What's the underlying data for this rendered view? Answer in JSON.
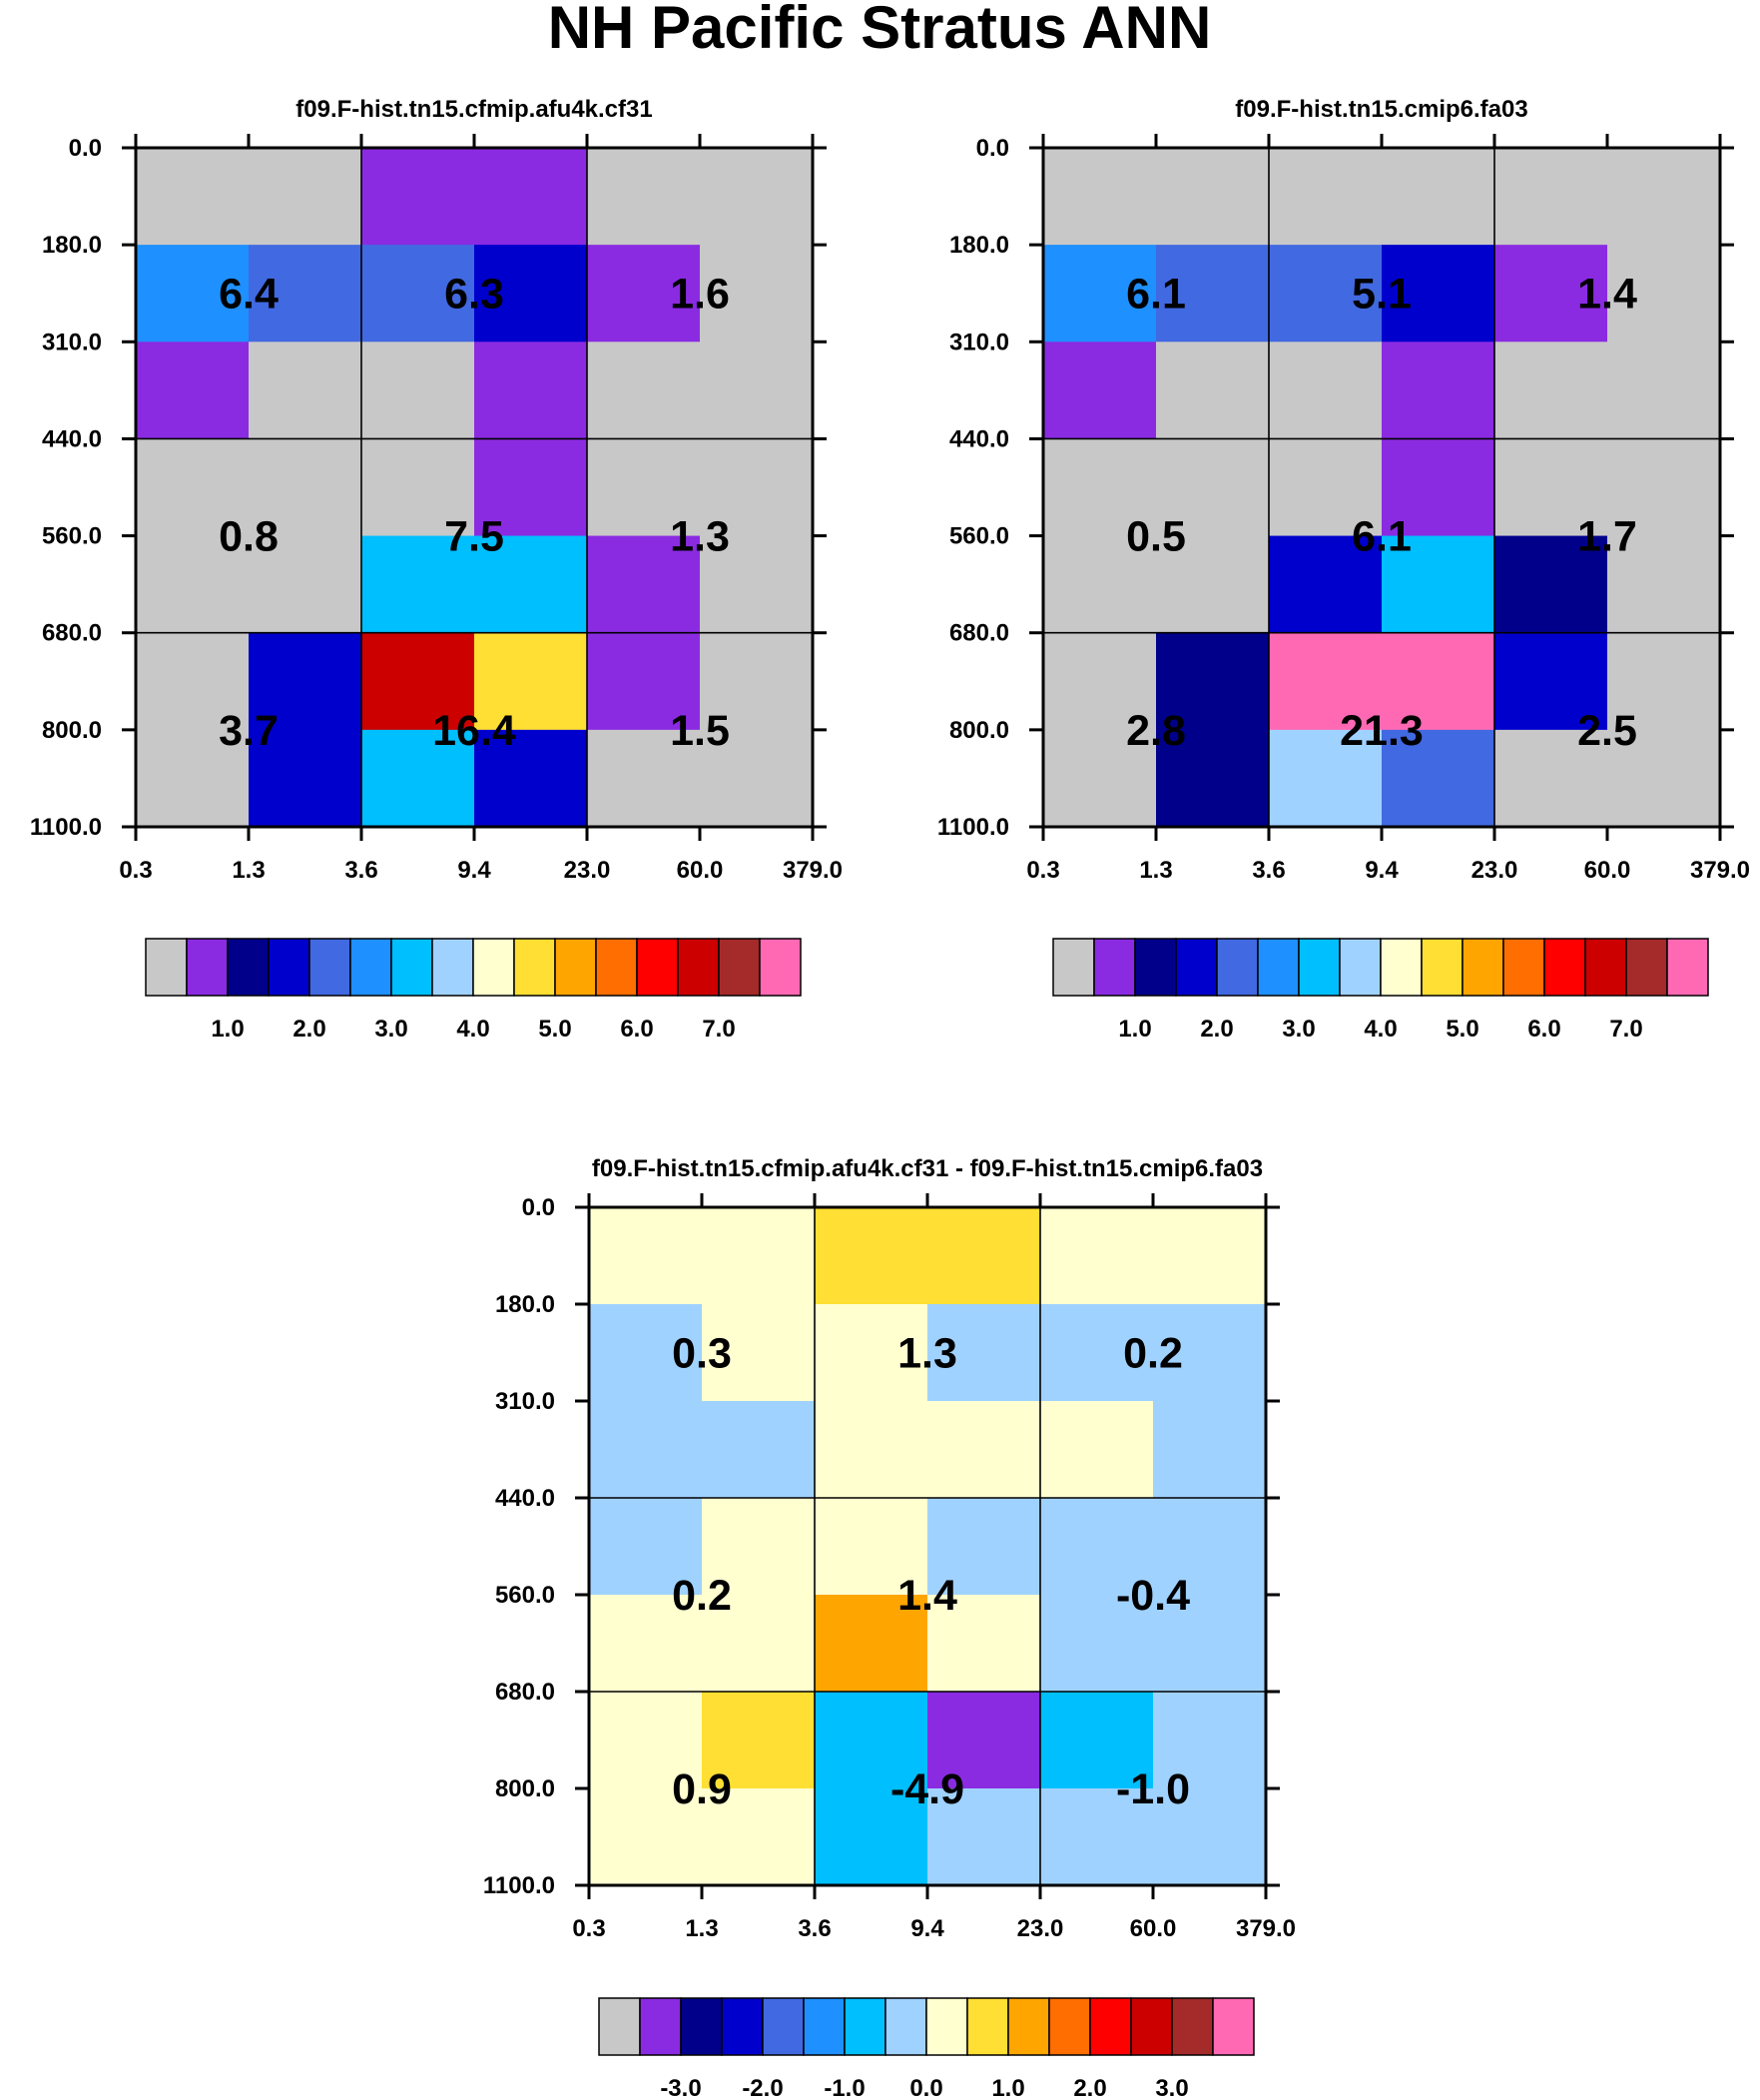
{
  "figure_title": "NH Pacific Stratus ANN",
  "x_tick_labels": [
    "0.3",
    "1.3",
    "3.6",
    "9.4",
    "23.0",
    "60.0",
    "379.0"
  ],
  "y_tick_labels": [
    "0.0",
    "180.0",
    "310.0",
    "440.0",
    "560.0",
    "680.0",
    "800.0",
    "1100.0"
  ],
  "colorbar_colors": [
    "#c8c8c8",
    "#8a2be2",
    "#00008b",
    "#0000cd",
    "#4169e1",
    "#1e90ff",
    "#00bfff",
    "#a0d2ff",
    "#ffffd0",
    "#ffdf33",
    "#ffa500",
    "#ff6e00",
    "#ff0000",
    "#cd0000",
    "#a52a2a",
    "#ff69b4"
  ],
  "chart_data": [
    {
      "type": "heatmap",
      "title": "f09.F-hist.tn15.cfmip.afu4k.cf31",
      "xlabel": "",
      "ylabel": "",
      "x_bin_edges": [
        "0.3",
        "1.3",
        "3.6",
        "9.4",
        "23.0",
        "60.0",
        "379.0"
      ],
      "y_bin_edges": [
        "0.0",
        "180.0",
        "310.0",
        "440.0",
        "560.0",
        "680.0",
        "800.0",
        "1100.0"
      ],
      "cells": [
        [
          "gray",
          "gray",
          "violet",
          "violet",
          "gray",
          "gray"
        ],
        [
          "dodgerblue",
          "royalblue",
          "royalblue",
          "mediumblue",
          "violet",
          "gray"
        ],
        [
          "violet",
          "gray",
          "gray",
          "violet",
          "gray",
          "gray"
        ],
        [
          "gray",
          "gray",
          "gray",
          "violet",
          "gray",
          "gray"
        ],
        [
          "gray",
          "gray",
          "deepskyblue",
          "deepskyblue",
          "violet",
          "gray"
        ],
        [
          "gray",
          "mediumblue",
          "red3",
          "gold",
          "violet",
          "gray"
        ],
        [
          "gray",
          "mediumblue",
          "deepskyblue",
          "mediumblue",
          "gray",
          "gray"
        ]
      ],
      "block_values": [
        [
          "6.4",
          "6.3",
          "1.6"
        ],
        [
          "0.8",
          "7.5",
          "1.3"
        ],
        [
          "3.7",
          "16.4",
          "1.5"
        ]
      ],
      "colorbar_tick_labels": [
        "1.0",
        "2.0",
        "3.0",
        "4.0",
        "5.0",
        "6.0",
        "7.0"
      ]
    },
    {
      "type": "heatmap",
      "title": "f09.F-hist.tn15.cmip6.fa03",
      "xlabel": "",
      "ylabel": "",
      "x_bin_edges": [
        "0.3",
        "1.3",
        "3.6",
        "9.4",
        "23.0",
        "60.0",
        "379.0"
      ],
      "y_bin_edges": [
        "0.0",
        "180.0",
        "310.0",
        "440.0",
        "560.0",
        "680.0",
        "800.0",
        "1100.0"
      ],
      "cells": [
        [
          "gray",
          "gray",
          "gray",
          "gray",
          "gray",
          "gray"
        ],
        [
          "dodgerblue",
          "royalblue",
          "royalblue",
          "mediumblue",
          "violet",
          "gray"
        ],
        [
          "violet",
          "gray",
          "gray",
          "violet",
          "gray",
          "gray"
        ],
        [
          "gray",
          "gray",
          "gray",
          "violet",
          "gray",
          "gray"
        ],
        [
          "gray",
          "gray",
          "mediumblue",
          "deepskyblue",
          "navy",
          "gray"
        ],
        [
          "gray",
          "navy",
          "hotpink",
          "hotpink",
          "mediumblue",
          "gray"
        ],
        [
          "gray",
          "navy",
          "lightskyblue",
          "royalblue",
          "gray",
          "gray"
        ]
      ],
      "block_values": [
        [
          "6.1",
          "5.1",
          "1.4"
        ],
        [
          "0.5",
          "6.1",
          "1.7"
        ],
        [
          "2.8",
          "21.3",
          "2.5"
        ]
      ],
      "colorbar_tick_labels": [
        "1.0",
        "2.0",
        "3.0",
        "4.0",
        "5.0",
        "6.0",
        "7.0"
      ]
    },
    {
      "type": "heatmap",
      "title": "f09.F-hist.tn15.cfmip.afu4k.cf31 - f09.F-hist.tn15.cmip6.fa03",
      "xlabel": "",
      "ylabel": "",
      "x_bin_edges": [
        "0.3",
        "1.3",
        "3.6",
        "9.4",
        "23.0",
        "60.0",
        "379.0"
      ],
      "y_bin_edges": [
        "0.0",
        "180.0",
        "310.0",
        "440.0",
        "560.0",
        "680.0",
        "800.0",
        "1100.0"
      ],
      "cells": [
        [
          "lightyellow",
          "lightyellow",
          "gold",
          "gold",
          "lightyellow",
          "lightyellow"
        ],
        [
          "lightskyblue",
          "lightyellow",
          "lightyellow",
          "lightskyblue",
          "lightskyblue",
          "lightskyblue"
        ],
        [
          "lightskyblue",
          "lightskyblue",
          "lightyellow",
          "lightyellow",
          "lightyellow",
          "lightskyblue"
        ],
        [
          "lightskyblue",
          "lightyellow",
          "lightyellow",
          "lightskyblue",
          "lightskyblue",
          "lightskyblue"
        ],
        [
          "lightyellow",
          "lightyellow",
          "orange",
          "lightyellow",
          "lightskyblue",
          "lightskyblue"
        ],
        [
          "lightyellow",
          "gold",
          "deepskyblue",
          "violet",
          "deepskyblue",
          "lightskyblue"
        ],
        [
          "lightyellow",
          "lightyellow",
          "deepskyblue",
          "lightskyblue",
          "lightskyblue",
          "lightskyblue"
        ]
      ],
      "block_values": [
        [
          "0.3",
          "1.3",
          "0.2"
        ],
        [
          "0.2",
          "1.4",
          "-0.4"
        ],
        [
          "0.9",
          "-4.9",
          "-1.0"
        ]
      ],
      "colorbar_tick_labels": [
        "-3.0",
        "-2.0",
        "-1.0",
        "0.0",
        "1.0",
        "2.0",
        "3.0"
      ]
    }
  ]
}
